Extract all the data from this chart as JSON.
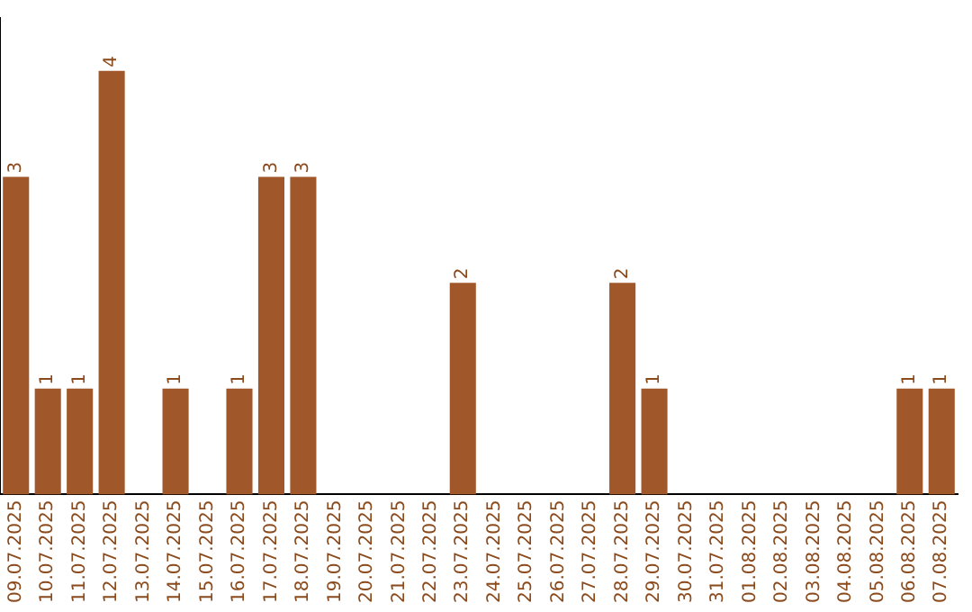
{
  "chart_data": {
    "type": "bar",
    "categories": [
      "09.07.2025",
      "10.07.2025",
      "11.07.2025",
      "12.07.2025",
      "13.07.2025",
      "14.07.2025",
      "15.07.2025",
      "16.07.2025",
      "17.07.2025",
      "18.07.2025",
      "19.07.2025",
      "20.07.2025",
      "21.07.2025",
      "22.07.2025",
      "23.07.2025",
      "24.07.2025",
      "25.07.2025",
      "26.07.2025",
      "27.07.2025",
      "28.07.2025",
      "29.07.2025",
      "30.07.2025",
      "31.07.2025",
      "01.08.2025",
      "02.08.2025",
      "03.08.2025",
      "04.08.2025",
      "05.08.2025",
      "06.08.2025",
      "07.08.2025"
    ],
    "values": [
      3,
      1,
      1,
      4,
      0,
      1,
      0,
      1,
      3,
      3,
      0,
      0,
      0,
      0,
      2,
      0,
      0,
      0,
      0,
      2,
      1,
      0,
      0,
      0,
      0,
      0,
      0,
      0,
      1,
      1
    ],
    "value_labels": [
      "3",
      "1",
      "1",
      "4",
      null,
      "1",
      null,
      "1",
      "3",
      "3",
      null,
      null,
      null,
      null,
      "2",
      null,
      null,
      null,
      null,
      "2",
      "1",
      null,
      null,
      null,
      null,
      null,
      null,
      null,
      "1",
      "1"
    ],
    "color": "#a0582a",
    "grid": false,
    "legend": false,
    "tick_labels": "x"
  }
}
